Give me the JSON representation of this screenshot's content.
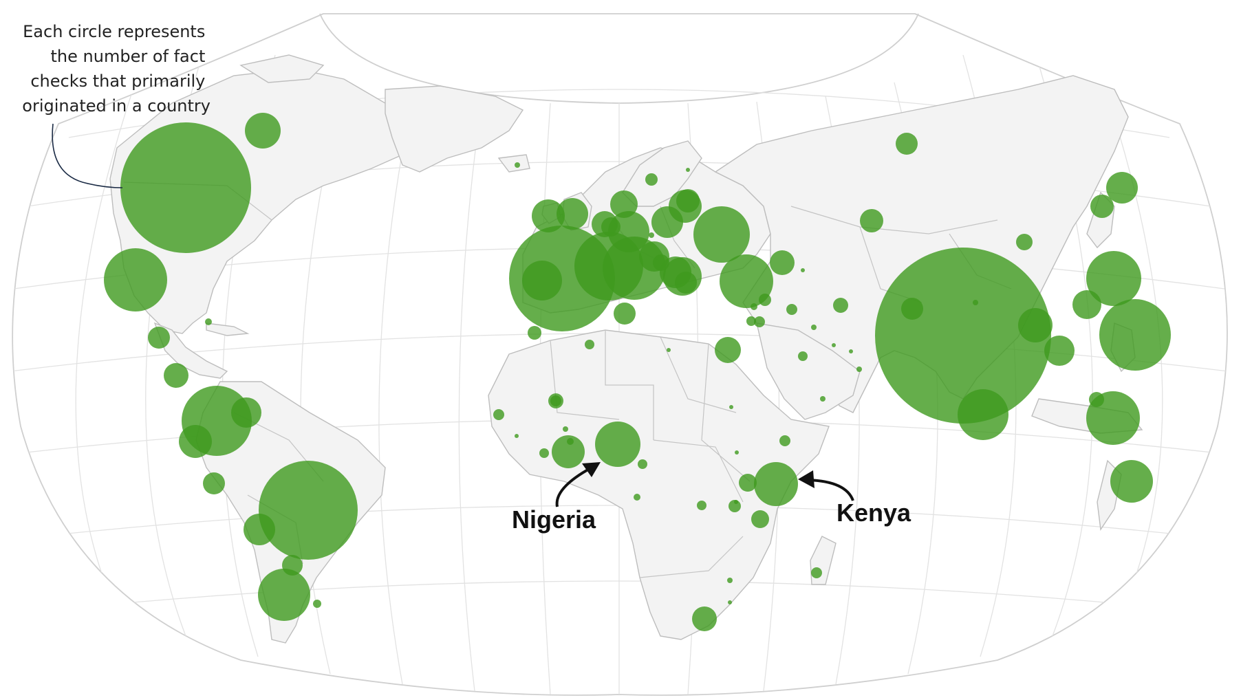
{
  "annotation": {
    "lines": [
      "Each circle represents",
      "the number of fact",
      "checks that primarily",
      "originated in a country"
    ]
  },
  "callouts": {
    "nigeria": "Nigeria",
    "kenya": "Kenya"
  },
  "colors": {
    "bubble": "#3f9a1e",
    "land": "#f3f3f3",
    "border": "#c4c4c4",
    "graticule": "#e2e2e2",
    "callout_text": "#111111"
  },
  "map_data": {
    "projection": "equal-area world, rounded outline",
    "bubble_relative_sizes": [
      {
        "id": "usa",
        "size": 95
      },
      {
        "id": "india",
        "size": 128
      },
      {
        "id": "brazil",
        "size": 72
      },
      {
        "id": "spain",
        "size": 67
      },
      {
        "id": "france",
        "size": 54
      },
      {
        "id": "italy",
        "size": 46
      },
      {
        "id": "mexico",
        "size": 46
      },
      {
        "id": "colombia",
        "size": 51
      },
      {
        "id": "indonesia",
        "size": 52
      },
      {
        "id": "philippines",
        "size": 40
      },
      {
        "id": "turkey",
        "size": 39
      },
      {
        "id": "ukraine",
        "size": 41
      },
      {
        "id": "argentina",
        "size": 38
      },
      {
        "id": "sri-lanka",
        "size": 37
      },
      {
        "id": "nigeria",
        "size": 33
      },
      {
        "id": "kenya",
        "size": 32
      },
      {
        "id": "malaysia",
        "size": 39
      },
      {
        "id": "australia",
        "size": 31
      },
      {
        "id": "germany",
        "size": 30
      },
      {
        "id": "uk",
        "size": 24
      },
      {
        "id": "ireland",
        "size": 23
      },
      {
        "id": "canada",
        "size": 26
      }
    ]
  }
}
